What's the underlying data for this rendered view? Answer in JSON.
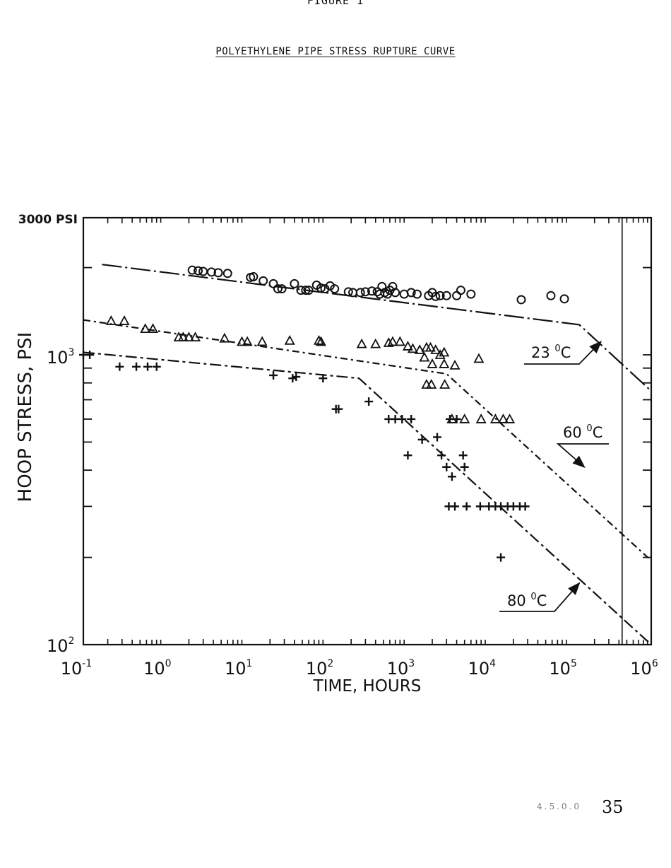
{
  "page": {
    "figure_label": "FIGURE 1",
    "title": "POLYETHYLENE PIPE STRESS RUPTURE CURVE",
    "page_number": "35",
    "page_prefix": "4.5.0.0"
  },
  "chart_data": {
    "type": "scatter",
    "title": "POLYETHYLENE PIPE STRESS RUPTURE CURVE",
    "xlabel": "TIME, HOURS",
    "ylabel": "HOOP STRESS, PSI",
    "xscale": "log",
    "yscale": "log",
    "xlim": [
      0.1,
      1000000
    ],
    "ylim": [
      100,
      3000
    ],
    "x_tick_labels": [
      "10^-1",
      "10^0",
      "10^1",
      "10^2",
      "10^3",
      "10^4",
      "10^5",
      "10^6"
    ],
    "y_tick_labels": [
      "10^2",
      "10^3",
      "3000 PSI"
    ],
    "reference_line_x_hours": 438000,
    "series": [
      {
        "name": "23 °C",
        "marker": "circle",
        "fit_line": [
          [
            0.17,
            2050
          ],
          [
            130000,
            1270
          ],
          [
            1000000,
            750
          ]
        ],
        "points": [
          [
            2.2,
            1960
          ],
          [
            2.6,
            1950
          ],
          [
            3.0,
            1940
          ],
          [
            3.8,
            1930
          ],
          [
            4.6,
            1920
          ],
          [
            6.0,
            1910
          ],
          [
            11.5,
            1850
          ],
          [
            12.5,
            1860
          ],
          [
            16.5,
            1800
          ],
          [
            22,
            1760
          ],
          [
            25,
            1690
          ],
          [
            28,
            1690
          ],
          [
            40,
            1760
          ],
          [
            48,
            1670
          ],
          [
            55,
            1670
          ],
          [
            60,
            1670
          ],
          [
            75,
            1740
          ],
          [
            85,
            1700
          ],
          [
            95,
            1690
          ],
          [
            110,
            1730
          ],
          [
            125,
            1690
          ],
          [
            185,
            1650
          ],
          [
            210,
            1640
          ],
          [
            260,
            1640
          ],
          [
            300,
            1650
          ],
          [
            360,
            1660
          ],
          [
            420,
            1650
          ],
          [
            450,
            1620
          ],
          [
            480,
            1720
          ],
          [
            520,
            1640
          ],
          [
            560,
            1620
          ],
          [
            600,
            1670
          ],
          [
            650,
            1720
          ],
          [
            700,
            1640
          ],
          [
            900,
            1620
          ],
          [
            1100,
            1640
          ],
          [
            1300,
            1620
          ],
          [
            1800,
            1600
          ],
          [
            2000,
            1640
          ],
          [
            2200,
            1590
          ],
          [
            2500,
            1600
          ],
          [
            3000,
            1600
          ],
          [
            4000,
            1600
          ],
          [
            4500,
            1670
          ],
          [
            6000,
            1620
          ],
          [
            25000,
            1550
          ],
          [
            58000,
            1600
          ],
          [
            85000,
            1560
          ]
        ]
      },
      {
        "name": "60 °C",
        "marker": "triangle",
        "fit_line": [
          [
            0.1,
            1320
          ],
          [
            3000,
            860
          ],
          [
            1000000,
            195
          ]
        ],
        "points": [
          [
            0.22,
            1310
          ],
          [
            0.32,
            1310
          ],
          [
            0.58,
            1230
          ],
          [
            0.72,
            1230
          ],
          [
            1.5,
            1150
          ],
          [
            1.7,
            1150
          ],
          [
            2.0,
            1150
          ],
          [
            2.4,
            1150
          ],
          [
            5.5,
            1140
          ],
          [
            9.0,
            1110
          ],
          [
            10.5,
            1110
          ],
          [
            16,
            1110
          ],
          [
            35,
            1120
          ],
          [
            80,
            1120
          ],
          [
            85,
            1110
          ],
          [
            270,
            1090
          ],
          [
            400,
            1090
          ],
          [
            580,
            1100
          ],
          [
            650,
            1110
          ],
          [
            800,
            1110
          ],
          [
            1000,
            1070
          ],
          [
            1150,
            1050
          ],
          [
            1400,
            1040
          ],
          [
            1700,
            1060
          ],
          [
            1900,
            1060
          ],
          [
            2200,
            1040
          ],
          [
            2500,
            1000
          ],
          [
            2800,
            1020
          ],
          [
            1600,
            980
          ],
          [
            2000,
            930
          ],
          [
            2800,
            930
          ],
          [
            3800,
            920
          ],
          [
            7500,
            970
          ],
          [
            1700,
            790
          ],
          [
            1950,
            790
          ],
          [
            2850,
            790
          ],
          [
            3500,
            600
          ],
          [
            5000,
            600
          ],
          [
            8000,
            600
          ],
          [
            12000,
            600
          ],
          [
            15000,
            600
          ],
          [
            18000,
            600
          ]
        ]
      },
      {
        "name": "80 °C",
        "marker": "plus",
        "fit_line": [
          [
            0.1,
            1020
          ],
          [
            250,
            830
          ],
          [
            1000000,
            100
          ]
        ],
        "points": [
          [
            0.1,
            1000
          ],
          [
            0.12,
            1000
          ],
          [
            0.28,
            910
          ],
          [
            0.45,
            910
          ],
          [
            0.62,
            910
          ],
          [
            0.8,
            910
          ],
          [
            22,
            850
          ],
          [
            38,
            830
          ],
          [
            42,
            840
          ],
          [
            90,
            830
          ],
          [
            130,
            650
          ],
          [
            140,
            650
          ],
          [
            330,
            690
          ],
          [
            580,
            600
          ],
          [
            700,
            600
          ],
          [
            850,
            600
          ],
          [
            1100,
            600
          ],
          [
            1000,
            450
          ],
          [
            1500,
            510
          ],
          [
            2300,
            520
          ],
          [
            2600,
            450
          ],
          [
            3500,
            380
          ],
          [
            3000,
            410
          ],
          [
            4800,
            450
          ],
          [
            5000,
            410
          ],
          [
            3300,
            600
          ],
          [
            4000,
            600
          ],
          [
            3200,
            300
          ],
          [
            3800,
            300
          ],
          [
            5300,
            300
          ],
          [
            7800,
            300
          ],
          [
            10000,
            300
          ],
          [
            12000,
            300
          ],
          [
            14000,
            300
          ],
          [
            17000,
            300
          ],
          [
            20000,
            300
          ],
          [
            24000,
            300
          ],
          [
            28000,
            300
          ],
          [
            14000,
            200
          ]
        ]
      }
    ],
    "annotations": [
      {
        "text": "23 °C",
        "points_to": [
          240000,
          1110
        ]
      },
      {
        "text": "60 °C",
        "points_to": [
          150000,
          410
        ]
      },
      {
        "text": "80 °C",
        "points_to": [
          130000,
          163
        ]
      }
    ]
  }
}
